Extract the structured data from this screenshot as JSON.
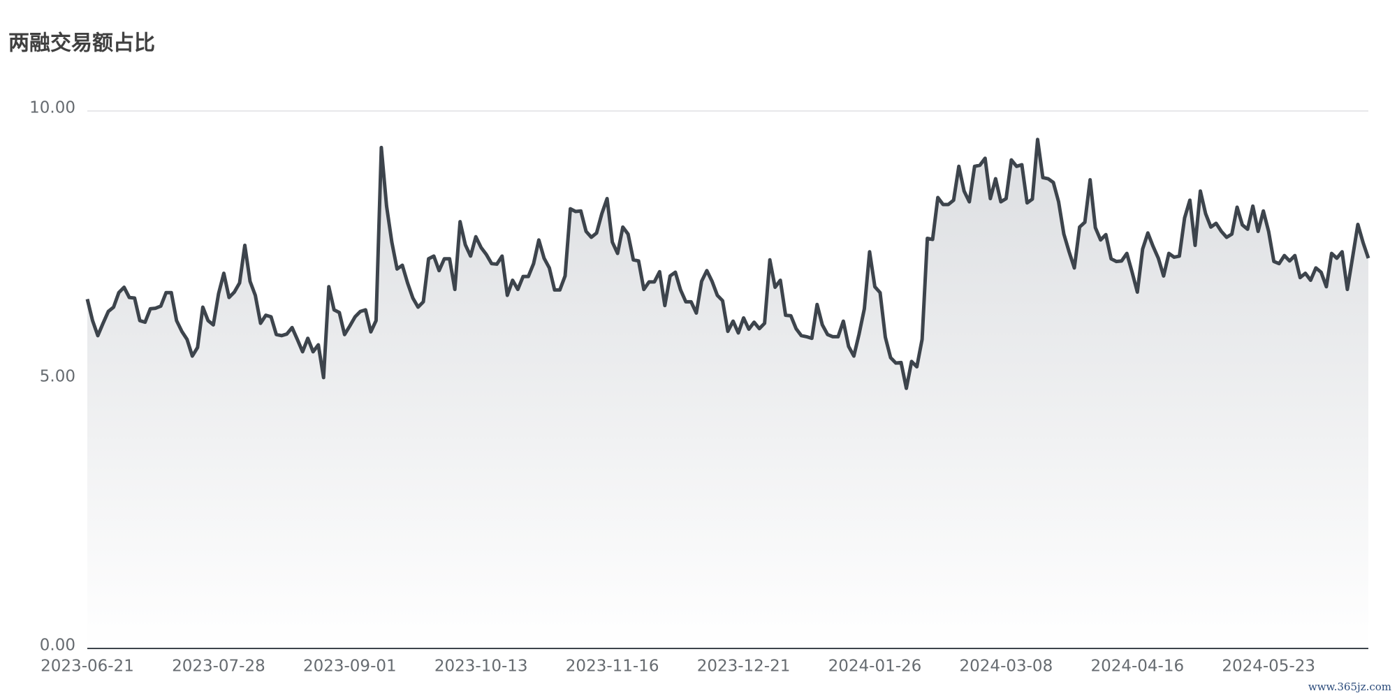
{
  "chart_data": {
    "type": "line",
    "title": "两融交易额占比",
    "watermark": "www.365jz.com",
    "categories": [
      "2023-06-21",
      null,
      null,
      null,
      null,
      null,
      null,
      null,
      null,
      null,
      null,
      null,
      null,
      null,
      null,
      null,
      null,
      null,
      null,
      null,
      null,
      null,
      null,
      null,
      null,
      "2023-07-28",
      null,
      null,
      null,
      null,
      null,
      null,
      null,
      null,
      null,
      null,
      null,
      null,
      null,
      null,
      null,
      null,
      null,
      null,
      null,
      null,
      null,
      null,
      null,
      null,
      "2023-09-01",
      null,
      null,
      null,
      null,
      null,
      null,
      null,
      null,
      null,
      null,
      null,
      null,
      null,
      null,
      null,
      null,
      null,
      null,
      null,
      null,
      null,
      null,
      null,
      null,
      "2023-10-13",
      null,
      null,
      null,
      null,
      null,
      null,
      null,
      null,
      null,
      null,
      null,
      null,
      null,
      null,
      null,
      null,
      null,
      null,
      null,
      null,
      null,
      null,
      null,
      null,
      "2023-11-16",
      null,
      null,
      null,
      null,
      null,
      null,
      null,
      null,
      null,
      null,
      null,
      null,
      null,
      null,
      null,
      null,
      null,
      null,
      null,
      null,
      null,
      null,
      null,
      null,
      "2023-12-21",
      null,
      null,
      null,
      null,
      null,
      null,
      null,
      null,
      null,
      null,
      null,
      null,
      null,
      null,
      null,
      null,
      null,
      null,
      null,
      null,
      null,
      null,
      null,
      null,
      "2024-01-26",
      null,
      null,
      null,
      null,
      null,
      null,
      null,
      null,
      null,
      null,
      null,
      null,
      null,
      null,
      null,
      null,
      null,
      null,
      null,
      null,
      null,
      null,
      null,
      null,
      "2024-03-08",
      null,
      null,
      null,
      null,
      null,
      null,
      null,
      null,
      null,
      null,
      null,
      null,
      null,
      null,
      null,
      null,
      null,
      null,
      null,
      null,
      null,
      null,
      null,
      null,
      "2024-04-16",
      null,
      null,
      null,
      null,
      null,
      null,
      null,
      null,
      null,
      null,
      null,
      null,
      null,
      null,
      null,
      null,
      null,
      null,
      null,
      null,
      null,
      null,
      null,
      null,
      "2024-05-23",
      null,
      null,
      null,
      null,
      null,
      null,
      null,
      null,
      null,
      null,
      null,
      null,
      null,
      null,
      null,
      null,
      null,
      null,
      null
    ],
    "series": [
      {
        "color": "#3d444c",
        "values": [
          6.5,
          6.1,
          5.82,
          6.05,
          6.27,
          6.35,
          6.62,
          6.72,
          6.53,
          6.52,
          6.1,
          6.07,
          6.32,
          6.33,
          6.37,
          6.62,
          6.62,
          6.1,
          5.9,
          5.75,
          5.44,
          5.6,
          6.35,
          6.1,
          6.02,
          6.6,
          6.98,
          6.53,
          6.63,
          6.8,
          7.5,
          6.83,
          6.57,
          6.05,
          6.2,
          6.17,
          5.84,
          5.82,
          5.85,
          5.97,
          5.75,
          5.52,
          5.77,
          5.52,
          5.65,
          5.04,
          6.73,
          6.3,
          6.25,
          5.84,
          6.0,
          6.17,
          6.27,
          6.3,
          5.89,
          6.1,
          9.32,
          8.23,
          7.56,
          7.06,
          7.13,
          6.8,
          6.52,
          6.35,
          6.45,
          7.25,
          7.3,
          7.03,
          7.25,
          7.25,
          6.68,
          7.94,
          7.51,
          7.3,
          7.66,
          7.46,
          7.33,
          7.16,
          7.15,
          7.3,
          6.57,
          6.85,
          6.68,
          6.92,
          6.92,
          7.16,
          7.6,
          7.26,
          7.08,
          6.67,
          6.67,
          6.93,
          8.18,
          8.13,
          8.14,
          7.76,
          7.65,
          7.73,
          8.09,
          8.37,
          7.56,
          7.35,
          7.84,
          7.71,
          7.23,
          7.21,
          6.68,
          6.82,
          6.82,
          7.01,
          6.38,
          6.93,
          7.0,
          6.67,
          6.45,
          6.45,
          6.24,
          6.83,
          7.03,
          6.83,
          6.57,
          6.47,
          5.9,
          6.09,
          5.87,
          6.15,
          5.94,
          6.07,
          5.95,
          6.05,
          7.23,
          6.72,
          6.85,
          6.2,
          6.19,
          5.95,
          5.82,
          5.8,
          5.77,
          6.4,
          6.02,
          5.84,
          5.8,
          5.8,
          6.09,
          5.62,
          5.44,
          5.85,
          6.32,
          7.38,
          6.73,
          6.62,
          5.79,
          5.41,
          5.31,
          5.32,
          4.84,
          5.34,
          5.24,
          5.75,
          7.63,
          7.61,
          8.39,
          8.26,
          8.26,
          8.34,
          8.97,
          8.51,
          8.31,
          8.97,
          8.99,
          9.12,
          8.37,
          8.74,
          8.31,
          8.37,
          9.09,
          8.97,
          9.0,
          8.29,
          8.36,
          9.47,
          8.76,
          8.74,
          8.67,
          8.31,
          7.71,
          7.38,
          7.08,
          7.84,
          7.93,
          8.72,
          7.83,
          7.6,
          7.7,
          7.25,
          7.2,
          7.21,
          7.35,
          7.0,
          6.63,
          7.43,
          7.73,
          7.48,
          7.26,
          6.93,
          7.35,
          7.28,
          7.3,
          8.01,
          8.34,
          7.5,
          8.51,
          8.09,
          7.84,
          7.91,
          7.76,
          7.65,
          7.71,
          8.21,
          7.88,
          7.8,
          8.23,
          7.76,
          8.14,
          7.76,
          7.2,
          7.16,
          7.31,
          7.21,
          7.31,
          6.9,
          6.98,
          6.85,
          7.08,
          7.0,
          6.73,
          7.35,
          7.26,
          7.38,
          6.68,
          7.28,
          7.89,
          7.55,
          7.26
        ]
      }
    ],
    "ylim": [
      0,
      10
    ],
    "yticks": [
      {
        "value": 0,
        "label": "0.00"
      },
      {
        "value": 5,
        "label": "5.00"
      },
      {
        "value": 10,
        "label": "10.00"
      }
    ],
    "grid": true,
    "area": true
  }
}
